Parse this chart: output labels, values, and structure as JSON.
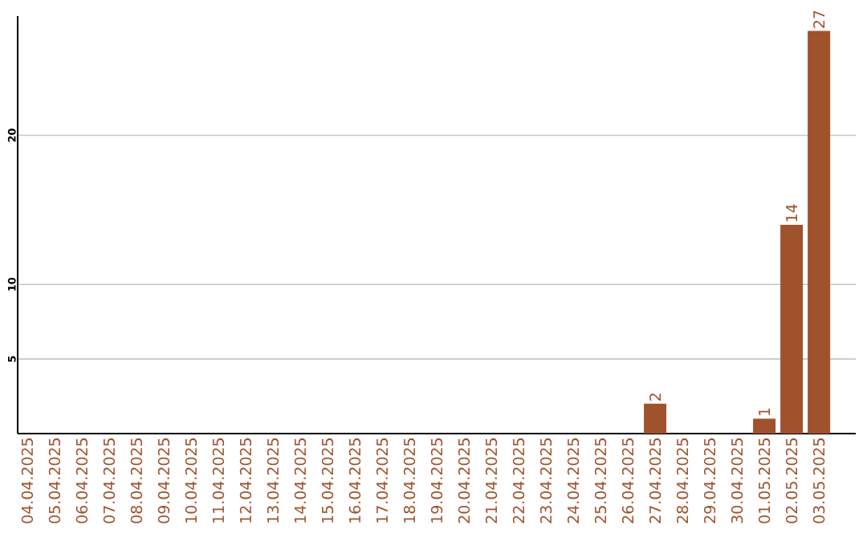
{
  "chart_data": {
    "type": "bar",
    "color": "#a0522d",
    "categories": [
      "04.04.2025",
      "05.04.2025",
      "06.04.2025",
      "07.04.2025",
      "08.04.2025",
      "09.04.2025",
      "10.04.2025",
      "11.04.2025",
      "12.04.2025",
      "13.04.2025",
      "14.04.2025",
      "15.04.2025",
      "16.04.2025",
      "17.04.2025",
      "18.04.2025",
      "19.04.2025",
      "20.04.2025",
      "21.04.2025",
      "22.04.2025",
      "23.04.2025",
      "24.04.2025",
      "25.04.2025",
      "26.04.2025",
      "27.04.2025",
      "28.04.2025",
      "29.04.2025",
      "30.04.2025",
      "01.05.2025",
      "02.05.2025",
      "03.05.2025"
    ],
    "values": [
      0,
      0,
      0,
      0,
      0,
      0,
      0,
      0,
      0,
      0,
      0,
      0,
      0,
      0,
      0,
      0,
      0,
      0,
      0,
      0,
      0,
      0,
      0,
      2,
      0,
      0,
      0,
      1,
      14,
      27
    ],
    "value_labels": [
      null,
      null,
      null,
      null,
      null,
      null,
      null,
      null,
      null,
      null,
      null,
      null,
      null,
      null,
      null,
      null,
      null,
      null,
      null,
      null,
      null,
      null,
      null,
      "2",
      null,
      null,
      null,
      "1",
      "14",
      "27"
    ],
    "ylim": [
      0,
      28
    ],
    "yticks": [
      5,
      10,
      20
    ],
    "grid": "y"
  }
}
